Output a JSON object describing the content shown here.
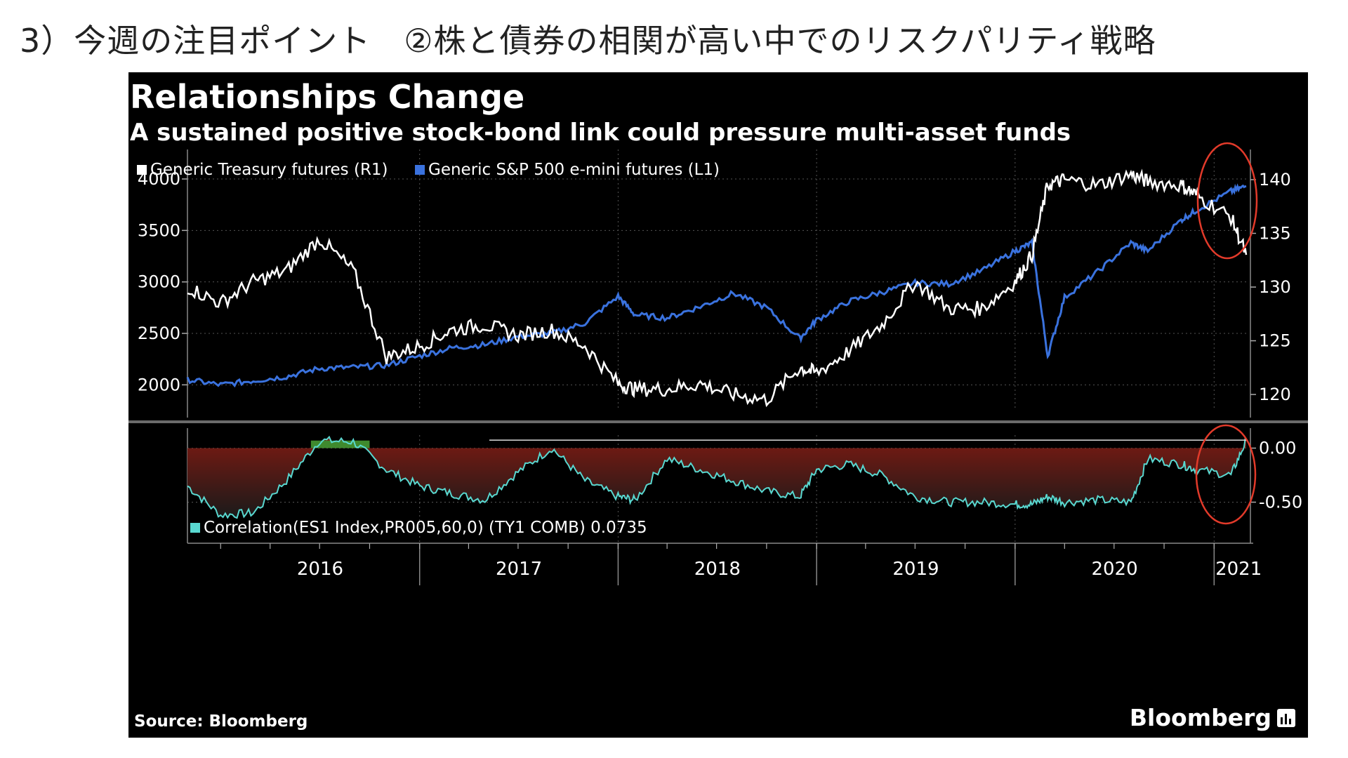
{
  "heading": "3）今週の注目ポイント　②株と債券の相関が高い中でのリスクパリティ戦略",
  "chart": {
    "title": "Relationships Change",
    "subtitle": "A sustained positive stock-bond link could pressure multi-asset funds",
    "legend_treasury": "Generic Treasury futures (R1)",
    "legend_sp500": "Generic S&P 500 e-mini futures (L1)",
    "legend_correlation": "Correlation(ES1 Index,PR005,60,0) (TY1 COMB) 0.0735",
    "source": "Source: Bloomberg",
    "brand": "Bloomberg"
  },
  "colors": {
    "sp500": "#3a72de",
    "treasury": "#ffffff",
    "correlation_line": "#59d8d0",
    "correlation_fill": "#7a1a12",
    "positive_fill": "#3f8a2e",
    "annotation_circle": "#e23a2a"
  },
  "chart_data": [
    {
      "type": "line",
      "x": [
        "2015-11",
        "2016-01",
        "2016-03",
        "2016-05",
        "2016-07",
        "2016-09",
        "2016-11",
        "2017-01",
        "2017-03",
        "2017-05",
        "2017-07",
        "2017-09",
        "2017-11",
        "2018-01",
        "2018-02",
        "2018-04",
        "2018-06",
        "2018-08",
        "2018-10",
        "2018-12",
        "2019-01",
        "2019-03",
        "2019-05",
        "2019-07",
        "2019-09",
        "2019-11",
        "2020-01",
        "2020-02",
        "2020-03",
        "2020-04",
        "2020-06",
        "2020-08",
        "2020-09",
        "2020-11",
        "2020-12",
        "2021-02",
        "2021-03"
      ],
      "series": [
        {
          "name": "Generic S&P 500 e-mini futures (L1)",
          "axis": "left",
          "values": [
            2050,
            2000,
            2040,
            2080,
            2160,
            2170,
            2190,
            2280,
            2360,
            2390,
            2470,
            2500,
            2600,
            2860,
            2680,
            2650,
            2760,
            2890,
            2750,
            2450,
            2630,
            2810,
            2900,
            2990,
            2980,
            3110,
            3300,
            3380,
            2280,
            2850,
            3100,
            3380,
            3300,
            3600,
            3700,
            3880,
            3930
          ]
        },
        {
          "name": "Generic Treasury futures (R1)",
          "axis": "right",
          "values": [
            130.0,
            128.5,
            130.5,
            131.5,
            134.5,
            131.5,
            123.5,
            124.5,
            126.0,
            126.5,
            125.5,
            126.0,
            124.5,
            121.0,
            120.5,
            120.5,
            121.0,
            120.0,
            119.5,
            122.5,
            122.0,
            124.0,
            126.5,
            130.5,
            128.0,
            128.0,
            130.5,
            133.0,
            139.5,
            140.0,
            139.5,
            140.5,
            139.8,
            139.5,
            138.5,
            136.5,
            133.0
          ]
        }
      ],
      "ylabel_left_ticks": [
        2000,
        2500,
        3000,
        3500,
        4000
      ],
      "ylabel_right_ticks": [
        120,
        125,
        130,
        135,
        140
      ],
      "ylim_left": [
        1750,
        4150
      ],
      "ylim_right": [
        118.5,
        141.5
      ]
    },
    {
      "type": "area",
      "x": [
        "2015-11",
        "2016-01",
        "2016-03",
        "2016-05",
        "2016-07",
        "2016-09",
        "2016-11",
        "2017-01",
        "2017-03",
        "2017-05",
        "2017-07",
        "2017-09",
        "2017-11",
        "2018-01",
        "2018-02",
        "2018-04",
        "2018-06",
        "2018-08",
        "2018-10",
        "2018-12",
        "2019-01",
        "2019-03",
        "2019-05",
        "2019-07",
        "2019-09",
        "2019-11",
        "2020-01",
        "2020-02",
        "2020-03",
        "2020-04",
        "2020-06",
        "2020-08",
        "2020-09",
        "2020-11",
        "2020-12",
        "2021-02",
        "2021-03"
      ],
      "series": [
        {
          "name": "Correlation(ES1 Index,PR005,60,0) (TY1 COMB)",
          "values": [
            -0.35,
            -0.62,
            -0.6,
            -0.3,
            0.07,
            0.06,
            -0.2,
            -0.35,
            -0.42,
            -0.48,
            -0.22,
            0.0,
            -0.3,
            -0.45,
            -0.48,
            -0.1,
            -0.2,
            -0.3,
            -0.4,
            -0.45,
            -0.2,
            -0.15,
            -0.25,
            -0.45,
            -0.5,
            -0.5,
            -0.52,
            -0.52,
            -0.45,
            -0.5,
            -0.48,
            -0.5,
            -0.1,
            -0.15,
            -0.2,
            -0.25,
            0.07
          ]
        }
      ],
      "y_ticks": [
        "0.00",
        "-0.50"
      ],
      "ylim": [
        -0.75,
        0.12
      ],
      "x_tick_labels": [
        "2016",
        "2017",
        "2018",
        "2019",
        "2020",
        "2021"
      ],
      "current_value": 0.0735
    }
  ]
}
